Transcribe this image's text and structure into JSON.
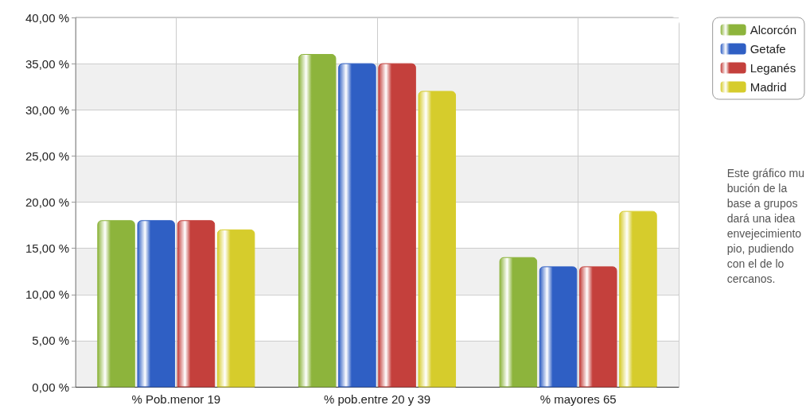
{
  "chart_data": {
    "type": "bar",
    "categories": [
      "% Pob.menor 19",
      "% pob.entre 20 y 39",
      "% mayores 65"
    ],
    "series": [
      {
        "name": "Alcorcón",
        "color": "#8db43c",
        "values": [
          18,
          36,
          14
        ]
      },
      {
        "name": "Getafe",
        "color": "#2f5fc4",
        "values": [
          18,
          35,
          13
        ]
      },
      {
        "name": "Leganés",
        "color": "#c4403c",
        "values": [
          18,
          35,
          13
        ]
      },
      {
        "name": "Madrid",
        "color": "#d6cc2c",
        "values": [
          17,
          32,
          19
        ]
      }
    ],
    "ylim": [
      0,
      40
    ],
    "yticks": [
      {
        "value": 0,
        "label": "0,00 %"
      },
      {
        "value": 5,
        "label": "5,00 %"
      },
      {
        "value": 10,
        "label": "10,00 %"
      },
      {
        "value": 15,
        "label": "15,00 %"
      },
      {
        "value": 20,
        "label": "20,00 %"
      },
      {
        "value": 25,
        "label": "25,00 %"
      },
      {
        "value": 30,
        "label": "30,00 %"
      },
      {
        "value": 35,
        "label": "35,00 %"
      },
      {
        "value": 40,
        "label": "40,00 %"
      }
    ],
    "grid": true,
    "legend": "top right",
    "annotations": [
      "Este gráfico mu\nbución de la\nbase a grupos\ndará una idea\nenvejecimiento\npio, pudiendo\ncon el de lo\ncercanos."
    ]
  }
}
